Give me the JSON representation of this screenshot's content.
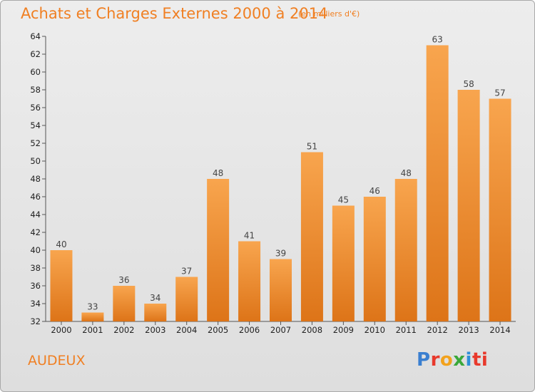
{
  "chart_data": {
    "type": "bar",
    "title": "Achats et Charges Externes 2000 à 2014",
    "subtitle": "(en milliers d'€)",
    "categories": [
      "2000",
      "2001",
      "2002",
      "2003",
      "2004",
      "2005",
      "2006",
      "2007",
      "2008",
      "2009",
      "2010",
      "2011",
      "2012",
      "2013",
      "2014"
    ],
    "values": [
      40,
      33,
      36,
      34,
      37,
      48,
      41,
      39,
      51,
      45,
      46,
      48,
      63,
      58,
      57
    ],
    "ylim": [
      32,
      64
    ],
    "yticks": [
      32,
      34,
      36,
      38,
      40,
      42,
      44,
      46,
      48,
      50,
      52,
      54,
      56,
      58,
      60,
      62,
      64
    ],
    "grid": false,
    "bar_color_top": "#f8a54e",
    "bar_color_bottom": "#dd7418",
    "accent_color": "#f07f22"
  },
  "location": "AUDEUX",
  "brand": {
    "logo_text": "Proxiti",
    "logo_letters": [
      "P",
      "r",
      "o",
      "x",
      "i",
      "ti"
    ]
  }
}
